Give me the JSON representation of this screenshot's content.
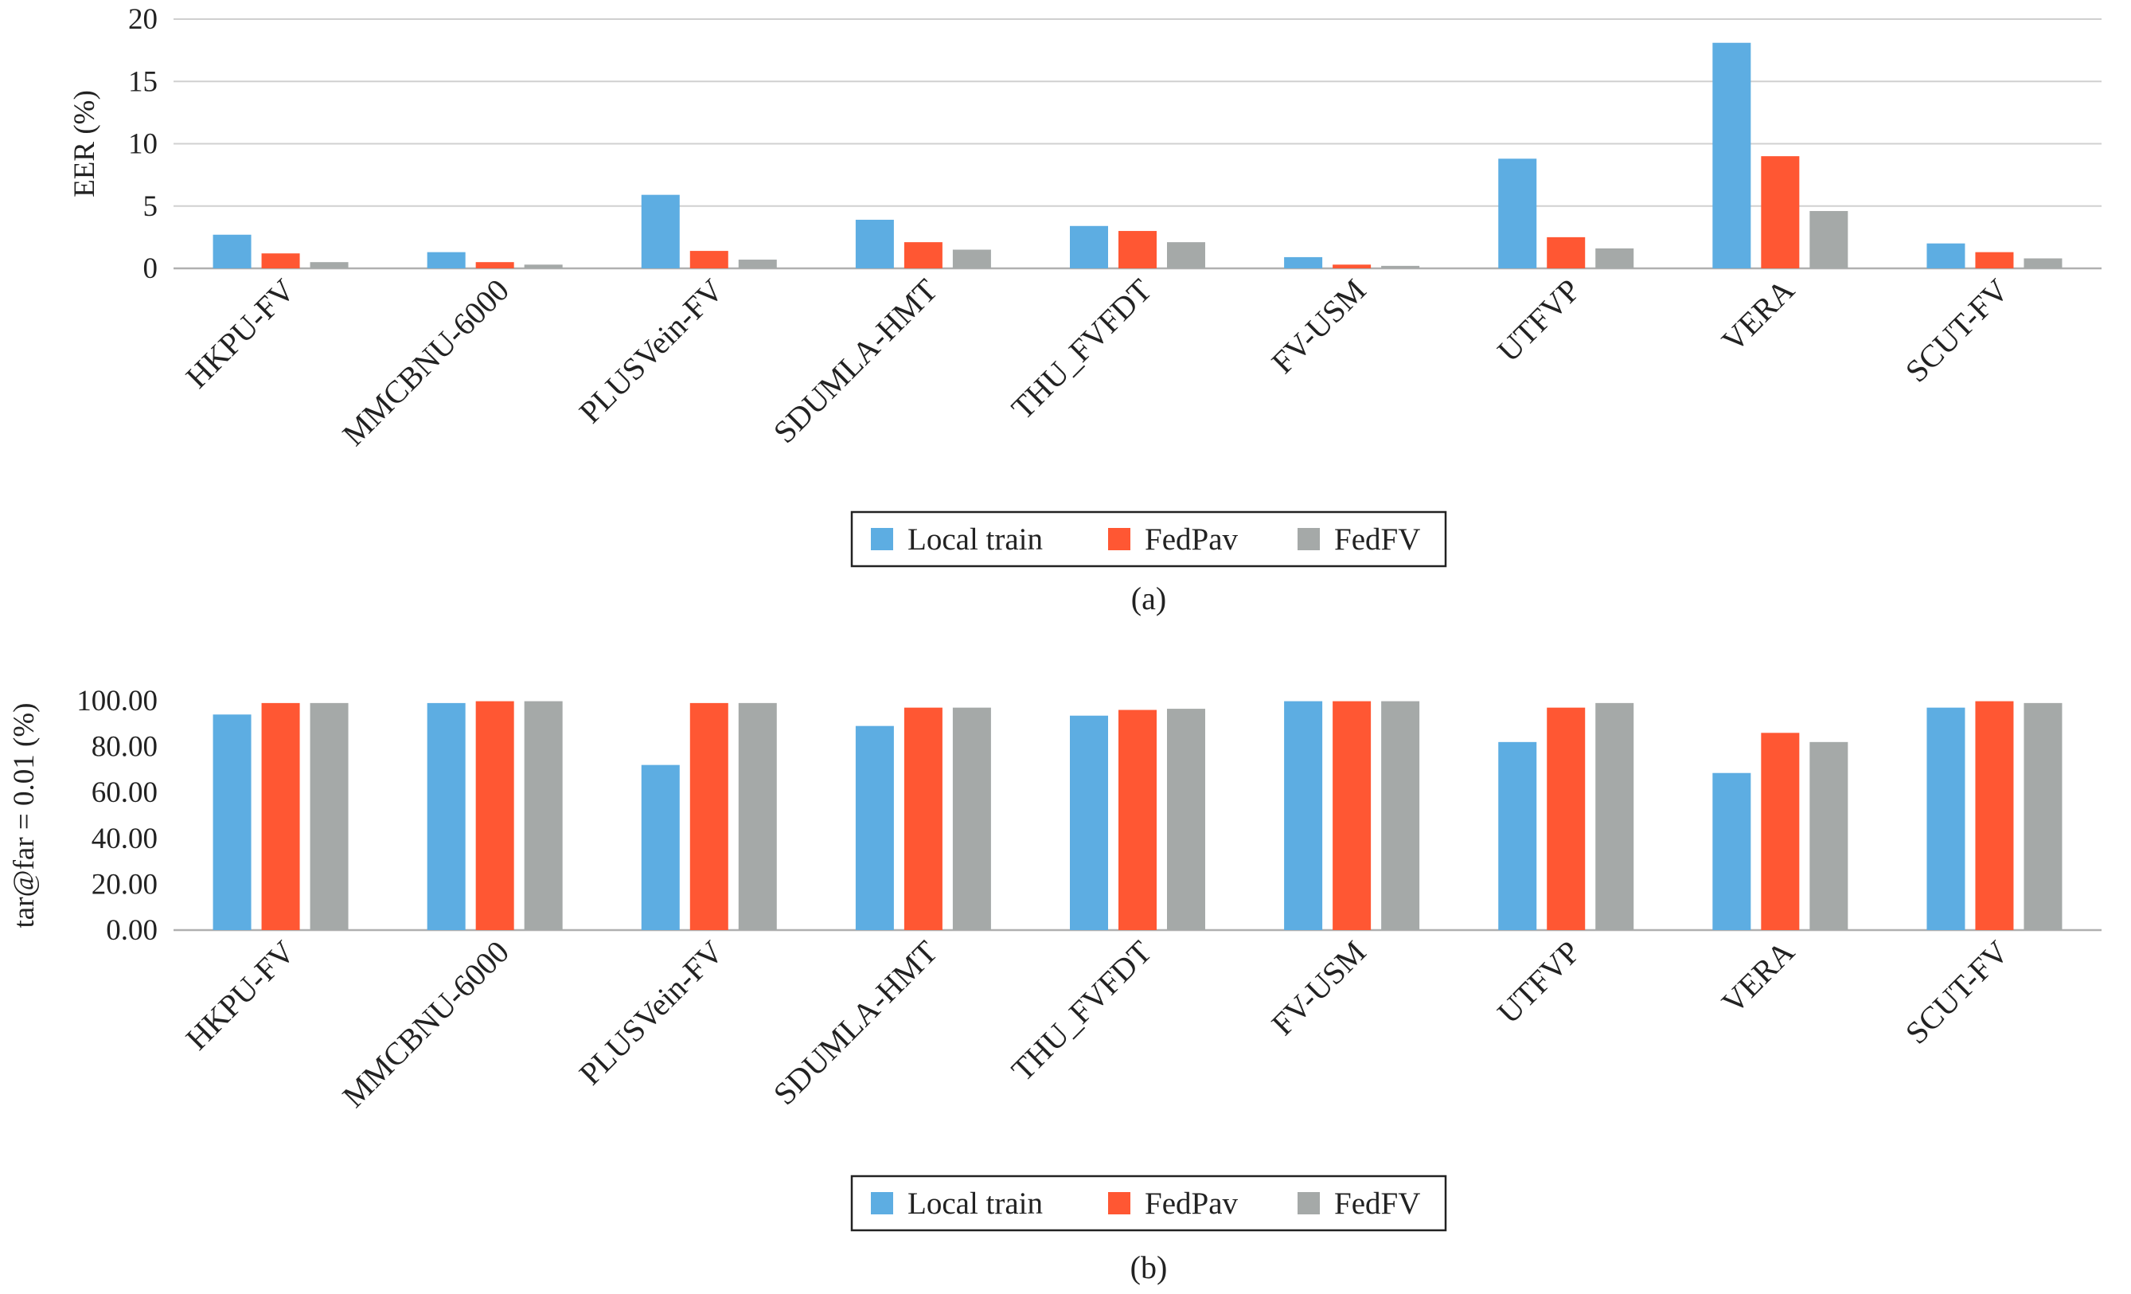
{
  "colors": {
    "local_train": "#5DADE2",
    "fedpav": "#FF5733",
    "fedfv": "#A5A9A8",
    "grid": "#D0D0D0",
    "axis": "#B0B0B0"
  },
  "chart_data": [
    {
      "type": "bar",
      "caption": "(a)",
      "ylabel": "EER (%)",
      "xlabel": "",
      "ylim": [
        0,
        20
      ],
      "yticks": [
        0,
        5,
        10,
        15,
        20
      ],
      "ytick_labels": [
        "0",
        "5",
        "10",
        "15",
        "20"
      ],
      "grid": true,
      "legend_position": "bottom-center",
      "categories": [
        "HKPU-FV",
        "MMCBNU-6000",
        "PLUSVein-FV",
        "SDUMLA-HMT",
        "THU_FVFDT",
        "FV-USM",
        "UTFVP",
        "VERA",
        "SCUT-FV"
      ],
      "series": [
        {
          "name": "Local train",
          "color": "#5DADE2",
          "values": [
            2.7,
            1.3,
            5.9,
            3.9,
            3.4,
            0.9,
            8.8,
            18.1,
            2.0
          ]
        },
        {
          "name": "FedPav",
          "color": "#FF5733",
          "values": [
            1.2,
            0.5,
            1.4,
            2.1,
            3.0,
            0.3,
            2.5,
            9.0,
            1.3
          ]
        },
        {
          "name": "FedFV",
          "color": "#A5A9A8",
          "values": [
            0.5,
            0.3,
            0.7,
            1.5,
            2.1,
            0.2,
            1.6,
            4.6,
            0.8
          ]
        }
      ]
    },
    {
      "type": "bar",
      "caption": "(b)",
      "ylabel": "tar@far = 0.01 (%)",
      "xlabel": "",
      "ylim": [
        0,
        100
      ],
      "yticks": [
        0,
        20,
        40,
        60,
        80,
        100
      ],
      "ytick_labels": [
        "0.00",
        "20.00",
        "40.00",
        "60.00",
        "80.00",
        "100.00"
      ],
      "grid": false,
      "legend_position": "bottom-center",
      "categories": [
        "HKPU-FV",
        "MMCBNU-6000",
        "PLUSVein-FV",
        "SDUMLA-HMT",
        "THU_FVFDT",
        "FV-USM",
        "UTFVP",
        "VERA",
        "SCUT-FV"
      ],
      "series": [
        {
          "name": "Local train",
          "color": "#5DADE2",
          "values": [
            94.0,
            99.0,
            72.0,
            89.0,
            93.5,
            99.8,
            82.0,
            68.5,
            97.0
          ]
        },
        {
          "name": "FedPav",
          "color": "#FF5733",
          "values": [
            99.0,
            99.8,
            99.0,
            97.0,
            96.0,
            99.8,
            97.0,
            86.0,
            99.8
          ]
        },
        {
          "name": "FedFV",
          "color": "#A5A9A8",
          "values": [
            99.0,
            99.8,
            99.0,
            97.0,
            96.5,
            99.8,
            99.0,
            82.0,
            99.0
          ]
        }
      ]
    }
  ]
}
